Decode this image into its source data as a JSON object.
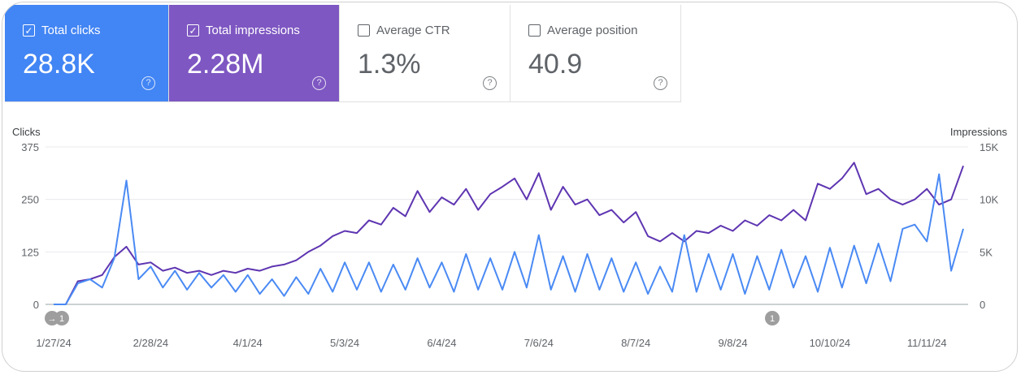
{
  "metrics": [
    {
      "label": "Total clicks",
      "value": "28.8K",
      "checked": true,
      "color": "#4285f4"
    },
    {
      "label": "Total impressions",
      "value": "2.28M",
      "checked": true,
      "color": "#7e57c2"
    },
    {
      "label": "Average CTR",
      "value": "1.3%",
      "checked": false
    },
    {
      "label": "Average position",
      "value": "40.9",
      "checked": false
    }
  ],
  "chart_data": {
    "type": "line",
    "left_axis_label": "Clicks",
    "right_axis_label": "Impressions",
    "left_ylim": [
      0,
      375
    ],
    "right_ylim": [
      0,
      15000
    ],
    "left_ticks": [
      "0",
      "125",
      "250",
      "375"
    ],
    "right_ticks": [
      "0",
      "5K",
      "10K",
      "15K"
    ],
    "x_ticks": [
      "1/27/24",
      "2/28/24",
      "4/1/24",
      "5/3/24",
      "6/4/24",
      "7/6/24",
      "8/7/24",
      "9/8/24",
      "10/10/24",
      "11/11/24"
    ],
    "grid": true,
    "x": [
      "2024-01-27",
      "2024-01-31",
      "2024-02-04",
      "2024-02-08",
      "2024-02-12",
      "2024-02-16",
      "2024-02-20",
      "2024-02-24",
      "2024-02-28",
      "2024-03-03",
      "2024-03-07",
      "2024-03-11",
      "2024-03-15",
      "2024-03-19",
      "2024-03-23",
      "2024-03-27",
      "2024-03-31",
      "2024-04-04",
      "2024-04-08",
      "2024-04-12",
      "2024-04-16",
      "2024-04-20",
      "2024-04-24",
      "2024-04-28",
      "2024-05-02",
      "2024-05-06",
      "2024-05-10",
      "2024-05-14",
      "2024-05-18",
      "2024-05-22",
      "2024-05-26",
      "2024-05-30",
      "2024-06-03",
      "2024-06-07",
      "2024-06-11",
      "2024-06-15",
      "2024-06-19",
      "2024-06-23",
      "2024-06-27",
      "2024-07-01",
      "2024-07-05",
      "2024-07-09",
      "2024-07-13",
      "2024-07-17",
      "2024-07-21",
      "2024-07-25",
      "2024-07-29",
      "2024-08-02",
      "2024-08-06",
      "2024-08-10",
      "2024-08-14",
      "2024-08-18",
      "2024-08-22",
      "2024-08-26",
      "2024-08-30",
      "2024-09-03",
      "2024-09-07",
      "2024-09-11",
      "2024-09-15",
      "2024-09-19",
      "2024-09-23",
      "2024-09-27",
      "2024-10-01",
      "2024-10-05",
      "2024-10-09",
      "2024-10-13",
      "2024-10-17",
      "2024-10-21",
      "2024-10-25",
      "2024-10-29",
      "2024-11-02",
      "2024-11-06",
      "2024-11-10",
      "2024-11-14",
      "2024-11-18",
      "2024-11-22"
    ],
    "series": [
      {
        "name": "Clicks",
        "axis": "left",
        "color": "#4a8af4",
        "values": [
          0,
          0,
          50,
          60,
          40,
          110,
          295,
          60,
          90,
          40,
          80,
          35,
          75,
          40,
          70,
          30,
          70,
          25,
          60,
          20,
          65,
          25,
          85,
          30,
          100,
          35,
          100,
          30,
          95,
          35,
          110,
          40,
          100,
          30,
          120,
          35,
          110,
          35,
          125,
          40,
          165,
          35,
          115,
          30,
          120,
          35,
          110,
          30,
          100,
          25,
          90,
          30,
          165,
          30,
          120,
          35,
          120,
          25,
          115,
          35,
          130,
          40,
          115,
          30,
          135,
          40,
          140,
          50,
          145,
          55,
          180,
          190,
          150,
          310,
          80,
          180
        ]
      },
      {
        "name": "Impressions",
        "axis": "right",
        "color": "#5e35b1",
        "values": [
          0,
          0,
          2200,
          2400,
          2800,
          4500,
          5500,
          3800,
          4000,
          3200,
          3500,
          3000,
          3200,
          2800,
          3200,
          3000,
          3400,
          3200,
          3600,
          3800,
          4200,
          5000,
          5600,
          6500,
          7000,
          6800,
          8000,
          7600,
          9200,
          8400,
          10800,
          8800,
          10200,
          9500,
          11000,
          9000,
          10500,
          11200,
          12000,
          10000,
          12500,
          9000,
          11200,
          9500,
          10000,
          8500,
          9000,
          7800,
          8800,
          6500,
          6000,
          6800,
          6000,
          7000,
          6800,
          7500,
          7000,
          8000,
          7500,
          8500,
          8000,
          9000,
          8000,
          11500,
          11000,
          12000,
          13500,
          10500,
          11000,
          10000,
          9500,
          10000,
          11000,
          9500,
          10000,
          13200
        ]
      }
    ],
    "annotations": [
      {
        "date": "2024-01-27",
        "label": "1",
        "arrow": true
      },
      {
        "date": "2024-09-20",
        "label": "1",
        "arrow": false
      }
    ]
  }
}
